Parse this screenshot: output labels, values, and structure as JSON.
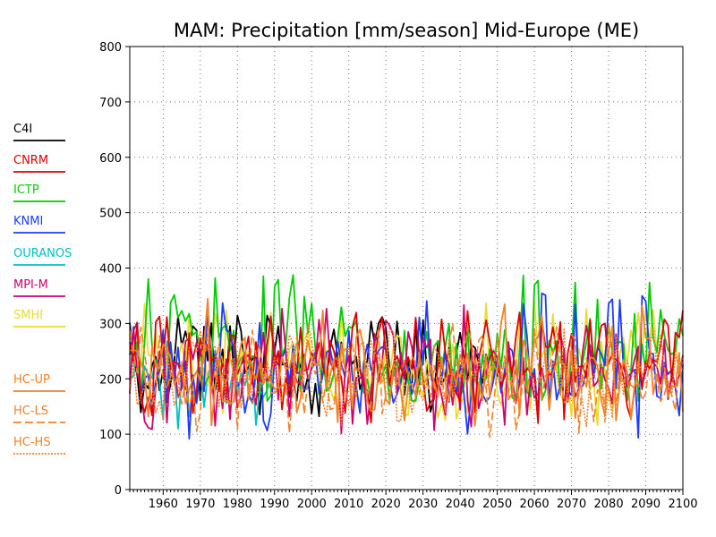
{
  "chart_data": {
    "type": "line",
    "title": "MAM: Precipitation [mm/season] Mid-Europe (ME)",
    "xlabel": "",
    "ylabel": "",
    "xlim": [
      1951,
      2100
    ],
    "ylim": [
      0,
      800
    ],
    "x_ticks": [
      1960,
      1970,
      1980,
      1990,
      2000,
      2010,
      2020,
      2030,
      2040,
      2050,
      2060,
      2070,
      2080,
      2090,
      2100
    ],
    "x_tick_labels": [
      "1960",
      "1970",
      "1980",
      "1990",
      "2000",
      "2010",
      "2020",
      "2030",
      "2040",
      "2050",
      "2060",
      "2070",
      "2080",
      "2090",
      "2100"
    ],
    "y_ticks": [
      0,
      100,
      200,
      300,
      400,
      500,
      600,
      700,
      800
    ],
    "y_tick_labels": [
      "0",
      "100",
      "200",
      "300",
      "400",
      "500",
      "600",
      "700",
      "800"
    ],
    "grid": true,
    "legend_position": "left",
    "series": [
      {
        "name": "C4I",
        "color": "#000000",
        "dash": "solid",
        "start": 1951,
        "end": 2050,
        "base": 225,
        "amp": 40,
        "peak": 315,
        "low": 125
      },
      {
        "name": "CNRM",
        "color": "#e00000",
        "dash": "solid",
        "start": 1951,
        "end": 2100,
        "base": 225,
        "amp": 40,
        "peak": 325,
        "low": 120
      },
      {
        "name": "ICTP",
        "color": "#00cc00",
        "dash": "solid",
        "start": 1951,
        "end": 2100,
        "base": 240,
        "amp": 50,
        "peak": 390,
        "low": 160
      },
      {
        "name": "KNMI",
        "color": "#1e3cff",
        "dash": "solid",
        "start": 1951,
        "end": 2100,
        "base": 205,
        "amp": 40,
        "peak": 355,
        "low": 90
      },
      {
        "name": "OURANOS",
        "color": "#00c0c0",
        "dash": "solid",
        "start": 1951,
        "end": 1990,
        "base": 195,
        "amp": 40,
        "peak": 270,
        "low": 110
      },
      {
        "name": "MPI-M",
        "color": "#d0006f",
        "dash": "solid",
        "start": 1951,
        "end": 2100,
        "base": 210,
        "amp": 45,
        "peak": 350,
        "low": 100
      },
      {
        "name": "SMHI",
        "color": "#e6dc32",
        "dash": "solid",
        "start": 1951,
        "end": 2100,
        "base": 220,
        "amp": 40,
        "peak": 340,
        "low": 115
      },
      {
        "name": "HC-UP",
        "color": "#f08228",
        "dash": "solid",
        "start": 1951,
        "end": 2100,
        "base": 215,
        "amp": 45,
        "peak": 345,
        "low": 115
      },
      {
        "name": "HC-LS",
        "color": "#f08228",
        "dash": "long-dash",
        "start": 1951,
        "end": 2100,
        "base": 205,
        "amp": 40,
        "peak": 300,
        "low": 90
      },
      {
        "name": "HC-HS",
        "color": "#f08228",
        "dash": "dotted",
        "start": 1951,
        "end": 2100,
        "base": 210,
        "amp": 35,
        "peak": 300,
        "low": 110
      }
    ]
  }
}
